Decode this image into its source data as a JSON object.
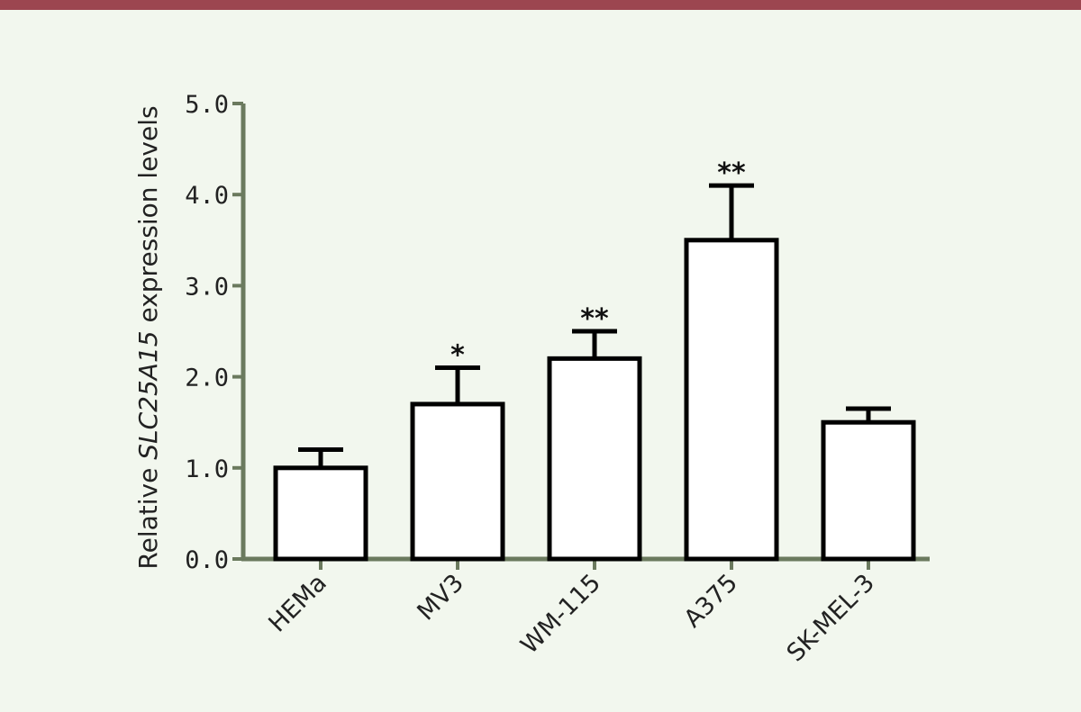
{
  "colors": {
    "top_bar": "#9c4650",
    "background": "#f2f7ee",
    "axis": "#6b7a5e",
    "bar_fill": "#ffffff",
    "bar_stroke": "#000000"
  },
  "chart_data": {
    "type": "bar",
    "title": "",
    "xlabel": "",
    "ylabel_prefix": "Relative ",
    "ylabel_gene": "SLC25A15",
    "ylabel_suffix": " expression levels",
    "categories": [
      "HEMa",
      "MV3",
      "WM-115",
      "A375",
      "SK-MEL-3"
    ],
    "values": [
      1.0,
      1.7,
      2.2,
      3.5,
      1.5
    ],
    "error_upper": [
      1.2,
      2.1,
      2.5,
      4.1,
      1.65
    ],
    "significance": [
      "",
      "*",
      "**",
      "**",
      ""
    ],
    "yticks": [
      "0.0",
      "1.0",
      "2.0",
      "3.0",
      "4.0",
      "5.0"
    ],
    "ylim": [
      0,
      5
    ],
    "grid": false,
    "legend": "none"
  }
}
